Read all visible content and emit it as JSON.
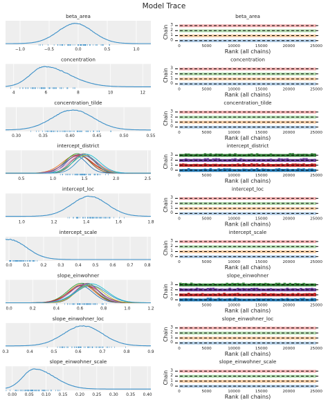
{
  "suptitle": "Model Trace",
  "colors": {
    "panel_bg": "#eeeeee",
    "kde_lines": [
      "#1f6fb0",
      "#e8701a",
      "#2a9a2a",
      "#c62828",
      "#7b4fa8",
      "#8c564b",
      "#e377c2",
      "#6f6f6f",
      "#bcbd22",
      "#17becf",
      "#3a8fc8"
    ],
    "rank_chain_fills": [
      "#a9c6e2",
      "#f3c79a",
      "#a9d6a3",
      "#f1a9a9"
    ],
    "rank_chain_fills_multi": [
      "#1f77b4",
      "#c62828",
      "#6a3d9a",
      "#2e7d32"
    ],
    "rug": "#3a8fc8",
    "ref_dash": "#000000"
  },
  "rank_axis": {
    "xlabel": "Rank (all chains)",
    "ylabel": "Chain",
    "xticks": [
      0,
      5000,
      10000,
      15000,
      20000,
      25000
    ],
    "yticks": [
      0,
      1,
      2,
      3
    ]
  },
  "chart_data": [
    {
      "type": "line",
      "name": "beta_area",
      "title": "beta_area",
      "xlim": [
        -1.25,
        1.25
      ],
      "xticks": [
        -1.0,
        -0.5,
        0.0,
        0.5,
        1.0
      ],
      "xtick_labels": [
        "−1.0",
        "−0.5",
        "0.0",
        "0.5",
        "1.0"
      ],
      "kde": {
        "mean": -0.05,
        "sd": 0.3,
        "n": 1,
        "spread": 0
      },
      "rank": {
        "title": "beta_area",
        "multi": false
      }
    },
    {
      "type": "line",
      "name": "concentration",
      "title": "concentration",
      "xlim": [
        3.5,
        12.5
      ],
      "xticks": [
        4,
        6,
        8,
        10,
        12
      ],
      "xtick_labels": [
        "4",
        "6",
        "8",
        "10",
        "12"
      ],
      "kde": {
        "mean": 5.9,
        "sd": 1.15,
        "skew": 1.0,
        "n": 1,
        "spread": 0
      },
      "rank": {
        "title": "concentration",
        "multi": false
      }
    },
    {
      "type": "line",
      "name": "concentration_tilde",
      "title": "concentration_tilde",
      "xlim": [
        0.28,
        0.55
      ],
      "xticks": [
        0.3,
        0.35,
        0.4,
        0.45,
        0.5,
        0.55
      ],
      "xtick_labels": [
        "0.30",
        "0.35",
        "0.40",
        "0.45",
        "0.50",
        "0.55"
      ],
      "kde": {
        "mean": 0.405,
        "sd": 0.038,
        "n": 1,
        "spread": 0
      },
      "rank": {
        "title": "concentration_tilde",
        "multi": false
      }
    },
    {
      "type": "line",
      "name": "intercept_district",
      "title": "intercept_district",
      "xlim": [
        0.25,
        2.55
      ],
      "xticks": [
        0.5,
        1.0,
        1.5,
        2.0,
        2.5
      ],
      "xtick_labels": [
        "0.5",
        "1.0",
        "1.5",
        "2.0",
        "2.5"
      ],
      "kde": {
        "mean": 1.45,
        "sd": 0.21,
        "n": 11,
        "spread": 0.09
      },
      "rank": {
        "title": "intercept_district",
        "multi": true
      }
    },
    {
      "type": "line",
      "name": "intercept_loc",
      "title": "intercept_loc",
      "xlim": [
        0.9,
        1.8
      ],
      "xticks": [
        1.0,
        1.2,
        1.4,
        1.6,
        1.8
      ],
      "xtick_labels": [
        "1.0",
        "1.2",
        "1.4",
        "1.6",
        "1.8"
      ],
      "kde": {
        "mean": 1.42,
        "sd": 0.11,
        "n": 1,
        "spread": 0
      },
      "rank": {
        "title": "intercept_loc",
        "multi": false
      }
    },
    {
      "type": "line",
      "name": "intercept_scale",
      "title": "intercept_scale",
      "xlim": [
        -0.02,
        0.82
      ],
      "xticks": [
        0.0,
        0.1,
        0.2,
        0.3,
        0.4,
        0.5,
        0.6,
        0.7,
        0.8
      ],
      "xtick_labels": [
        "0.0",
        "0.1",
        "0.2",
        "0.3",
        "0.4",
        "0.5",
        "0.6",
        "0.7",
        "0.8"
      ],
      "kde": {
        "mean": 0.0,
        "sd": 0.1,
        "half": true,
        "n": 1,
        "spread": 0
      },
      "rank": {
        "title": "intercept_scale",
        "multi": false
      }
    },
    {
      "type": "line",
      "name": "slope_einwohner",
      "title": "slope_einwohner",
      "xlim": [
        -0.03,
        1.2
      ],
      "xticks": [
        0.0,
        0.2,
        0.4,
        0.6,
        0.8,
        1.0,
        1.2
      ],
      "xtick_labels": [
        "0.0",
        "0.2",
        "0.4",
        "0.6",
        "0.8",
        "1.0",
        "1.2"
      ],
      "kde": {
        "mean": 0.65,
        "sd": 0.12,
        "n": 11,
        "spread": 0.05
      },
      "rank": {
        "title": "slope_einwohner",
        "multi": true
      }
    },
    {
      "type": "line",
      "name": "slope_einwohner_loc",
      "title": "slope_einwohner_loc",
      "xlim": [
        0.3,
        0.9
      ],
      "xticks": [
        0.3,
        0.4,
        0.5,
        0.6,
        0.7,
        0.8,
        0.9
      ],
      "xtick_labels": [
        "0.3",
        "0.4",
        "0.5",
        "0.6",
        "0.7",
        "0.8",
        "0.9"
      ],
      "kde": {
        "mean": 0.62,
        "sd": 0.08,
        "n": 1,
        "spread": 0
      },
      "rank": {
        "title": "slope_einwohner_loc",
        "multi": false
      }
    },
    {
      "type": "line",
      "name": "slope_einwohner_scale",
      "title": "slope_einwohner_scale",
      "xlim": [
        -0.02,
        0.41
      ],
      "xticks": [
        0.0,
        0.05,
        0.1,
        0.15,
        0.2,
        0.25,
        0.3,
        0.35,
        0.4
      ],
      "xtick_labels": [
        "0.00",
        "0.05",
        "0.10",
        "0.15",
        "0.20",
        "0.25",
        "0.30",
        "0.35",
        "0.40"
      ],
      "kde": {
        "mean": 0.065,
        "sd": 0.045,
        "skew": 0.9,
        "n": 1,
        "spread": 0
      },
      "rank": {
        "title": "slope_einwohner_scale",
        "multi": false
      }
    }
  ]
}
